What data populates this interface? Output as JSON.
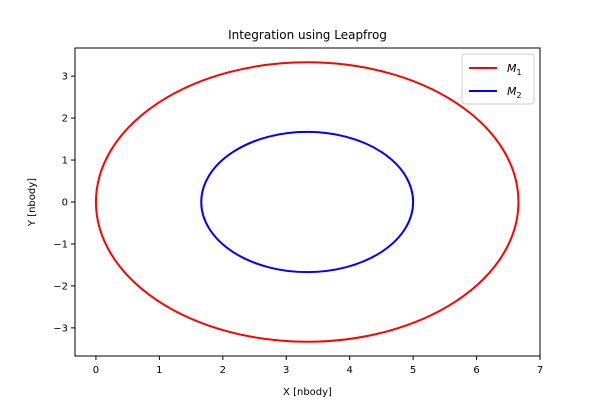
{
  "chart_data": {
    "type": "line",
    "title": "Integration using Leapfrog",
    "xlabel": "X [nbody]",
    "ylabel": "Y [nbody]",
    "xlim": [
      -0.33,
      7.0
    ],
    "ylim": [
      -3.67,
      3.67
    ],
    "xticks": [
      0,
      1,
      2,
      3,
      4,
      5,
      6,
      7
    ],
    "yticks": [
      -3,
      -2,
      -1,
      0,
      1,
      2,
      3
    ],
    "grid": false,
    "legend_position": "top-right",
    "series": [
      {
        "name": "M",
        "subscript": "1",
        "color": "#ff0000",
        "orbit": {
          "center_x": 3.33,
          "center_y": 0,
          "semi_x": 3.33,
          "semi_y": 3.33
        }
      },
      {
        "name": "M",
        "subscript": "2",
        "color": "#0000ff",
        "orbit": {
          "center_x": 3.33,
          "center_y": 0,
          "semi_x": 1.67,
          "semi_y": 1.67
        }
      }
    ]
  }
}
